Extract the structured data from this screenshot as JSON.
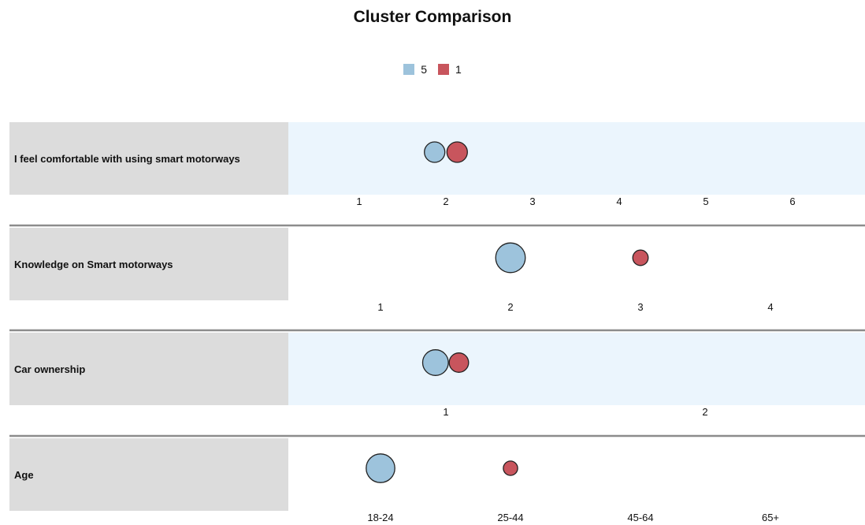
{
  "chart_data": {
    "type": "scatter",
    "title": "Cluster Comparison",
    "legend_placement": "top-center",
    "series": [
      {
        "name": "5",
        "color": "#9dc3dc"
      },
      {
        "name": "1",
        "color": "#c8555d"
      }
    ],
    "rows": [
      {
        "label": "I feel comfortable with using smart motorways",
        "ticks": [
          "1",
          "2",
          "3",
          "4",
          "5",
          "6"
        ],
        "xlim": [
          1,
          6
        ],
        "shaded": true,
        "points": [
          {
            "series": "5",
            "x": 1.87,
            "size": 1.0
          },
          {
            "series": "1",
            "x": 2.13,
            "size": 1.0
          }
        ]
      },
      {
        "label": "Knowledge on Smart motorways",
        "ticks": [
          "1",
          "2",
          "3",
          "4"
        ],
        "xlim": [
          1,
          4
        ],
        "shaded": false,
        "points": [
          {
            "series": "5",
            "x": 2.0,
            "size": 1.45
          },
          {
            "series": "1",
            "x": 3.0,
            "size": 0.75
          }
        ]
      },
      {
        "label": "Car ownership",
        "ticks": [
          "1",
          "2"
        ],
        "xlim": [
          1,
          2
        ],
        "shaded": true,
        "points": [
          {
            "series": "5",
            "x": 0.96,
            "size": 1.25
          },
          {
            "series": "1",
            "x": 1.05,
            "size": 0.95
          }
        ]
      },
      {
        "label": "Age",
        "ticks": [
          "18-24",
          "25-44",
          "45-64",
          "65+"
        ],
        "xlim": [
          1,
          4
        ],
        "shaded": false,
        "points": [
          {
            "series": "5",
            "x": 1.0,
            "size": 1.4
          },
          {
            "series": "1",
            "x": 2.0,
            "size": 0.7
          }
        ]
      }
    ]
  }
}
